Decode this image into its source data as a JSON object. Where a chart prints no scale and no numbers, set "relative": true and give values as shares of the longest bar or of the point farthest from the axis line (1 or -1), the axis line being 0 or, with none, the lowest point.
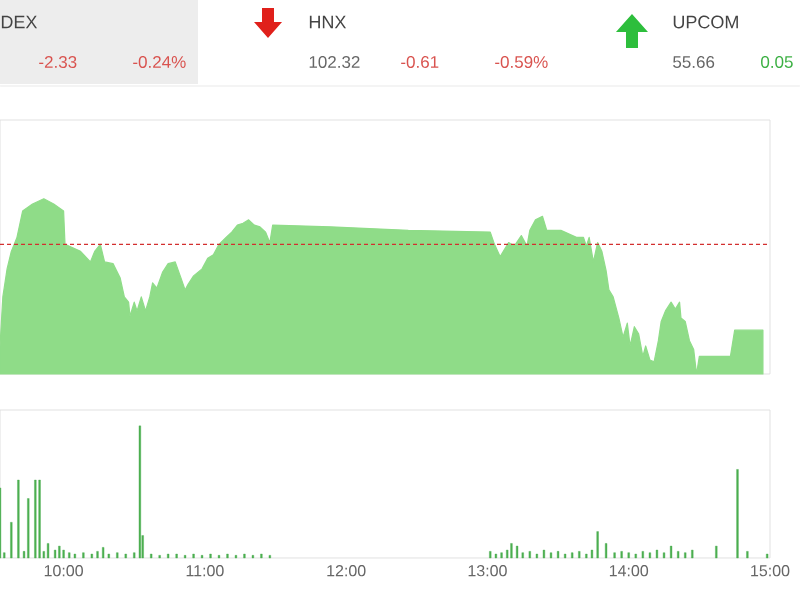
{
  "chart_data": [
    {
      "type": "other",
      "annotations": [
        "DEX",
        "-2.33",
        "-0.24%",
        "HNX",
        "102.32",
        "-0.61",
        "-0.59%",
        "UPCOM",
        "55.66",
        "0.05"
      ]
    },
    {
      "type": "area",
      "relative": true,
      "color": "#8fdc88",
      "x": [
        9.55,
        9.57,
        9.6,
        9.63,
        9.67,
        9.71,
        9.78,
        9.86,
        9.93,
        10.0,
        10.01,
        10.12,
        10.19,
        10.22,
        10.26,
        10.29,
        10.35,
        10.4,
        10.43,
        10.46,
        10.47,
        10.5,
        10.52,
        10.55,
        10.58,
        10.61,
        10.63,
        10.66,
        10.7,
        10.74,
        10.79,
        10.83,
        10.86,
        10.88,
        10.92,
        10.98,
        11.02,
        11.06,
        11.1,
        11.15,
        11.19,
        11.23,
        11.27,
        11.31,
        11.35,
        11.39,
        11.43,
        11.46,
        11.48,
        11.89,
        12.44,
        13.02,
        13.05,
        13.09,
        13.12,
        13.15,
        13.19,
        13.24,
        13.28,
        13.3,
        13.34,
        13.39,
        13.42,
        13.52,
        13.63,
        13.68,
        13.7,
        13.72,
        13.75,
        13.78,
        13.81,
        13.84,
        13.86,
        13.89,
        13.93,
        13.96,
        13.99,
        14.01,
        14.04,
        14.07,
        14.1,
        14.12,
        14.15,
        14.18,
        14.21,
        14.23,
        14.26,
        14.3,
        14.33,
        14.36,
        14.37,
        14.4,
        14.43,
        14.46,
        14.48,
        14.5,
        14.72,
        14.75,
        14.95
      ],
      "values": [
        0.16,
        0.44,
        0.6,
        0.7,
        0.78,
        0.93,
        0.97,
        1.0,
        0.97,
        0.93,
        0.74,
        0.7,
        0.64,
        0.7,
        0.74,
        0.64,
        0.63,
        0.55,
        0.44,
        0.41,
        0.33,
        0.41,
        0.36,
        0.44,
        0.36,
        0.44,
        0.52,
        0.49,
        0.58,
        0.63,
        0.64,
        0.55,
        0.48,
        0.51,
        0.56,
        0.6,
        0.66,
        0.68,
        0.74,
        0.78,
        0.81,
        0.85,
        0.86,
        0.88,
        0.85,
        0.84,
        0.81,
        0.75,
        0.85,
        0.84,
        0.82,
        0.81,
        0.74,
        0.67,
        0.71,
        0.75,
        0.73,
        0.79,
        0.73,
        0.82,
        0.88,
        0.9,
        0.82,
        0.82,
        0.78,
        0.78,
        0.73,
        0.78,
        0.64,
        0.75,
        0.7,
        0.59,
        0.48,
        0.44,
        0.32,
        0.21,
        0.29,
        0.16,
        0.27,
        0.23,
        0.1,
        0.16,
        0.08,
        0.07,
        0.19,
        0.3,
        0.36,
        0.41,
        0.37,
        0.41,
        0.32,
        0.3,
        0.19,
        0.14,
        0.0,
        0.1,
        0.1,
        0.25,
        0.25
      ],
      "ref_lines": [
        {
          "axis": "y",
          "value": 0.74,
          "color": "#d32f2f",
          "line_style": "dashed"
        }
      ],
      "xlim": [
        9.55,
        15.0
      ],
      "tick_labels": false
    },
    {
      "type": "bar",
      "relative": true,
      "color": "#4caf50",
      "x": [
        9.55,
        9.58,
        9.63,
        9.68,
        9.72,
        9.75,
        9.8,
        9.83,
        9.86,
        9.89,
        9.94,
        9.97,
        10.0,
        10.04,
        10.08,
        10.14,
        10.2,
        10.24,
        10.28,
        10.32,
        10.38,
        10.44,
        10.5,
        10.54,
        10.56,
        10.62,
        10.68,
        10.74,
        10.8,
        10.86,
        10.92,
        10.98,
        11.04,
        11.1,
        11.16,
        11.22,
        11.28,
        11.34,
        11.4,
        11.46,
        13.02,
        13.06,
        13.1,
        13.14,
        13.17,
        13.21,
        13.25,
        13.3,
        13.35,
        13.4,
        13.45,
        13.5,
        13.55,
        13.6,
        13.65,
        13.7,
        13.74,
        13.78,
        13.84,
        13.9,
        13.95,
        14.0,
        14.05,
        14.1,
        14.15,
        14.2,
        14.25,
        14.3,
        14.35,
        14.4,
        14.45,
        14.62,
        14.77,
        14.84,
        14.98
      ],
      "values": [
        0.53,
        0.04,
        0.27,
        0.59,
        0.05,
        0.45,
        0.59,
        0.59,
        0.05,
        0.11,
        0.06,
        0.09,
        0.06,
        0.04,
        0.03,
        0.04,
        0.03,
        0.05,
        0.08,
        0.03,
        0.04,
        0.03,
        0.04,
        1.0,
        0.17,
        0.03,
        0.02,
        0.03,
        0.03,
        0.02,
        0.03,
        0.02,
        0.03,
        0.02,
        0.03,
        0.02,
        0.03,
        0.02,
        0.03,
        0.02,
        0.05,
        0.03,
        0.04,
        0.06,
        0.11,
        0.09,
        0.04,
        0.05,
        0.03,
        0.06,
        0.04,
        0.05,
        0.03,
        0.04,
        0.05,
        0.03,
        0.06,
        0.2,
        0.11,
        0.04,
        0.05,
        0.04,
        0.03,
        0.05,
        0.04,
        0.06,
        0.04,
        0.09,
        0.05,
        0.04,
        0.06,
        0.09,
        0.67,
        0.05,
        0.03
      ],
      "xlim": [
        9.55,
        15.0
      ],
      "xticks": [
        {
          "value": 10,
          "label": "10:00"
        },
        {
          "value": 11,
          "label": "11:00"
        },
        {
          "value": 12,
          "label": "12:00"
        },
        {
          "value": 13,
          "label": "13:00"
        },
        {
          "value": 14,
          "label": "14:00"
        },
        {
          "value": 15,
          "label": "15:00"
        }
      ],
      "tick_labels": "x"
    }
  ]
}
